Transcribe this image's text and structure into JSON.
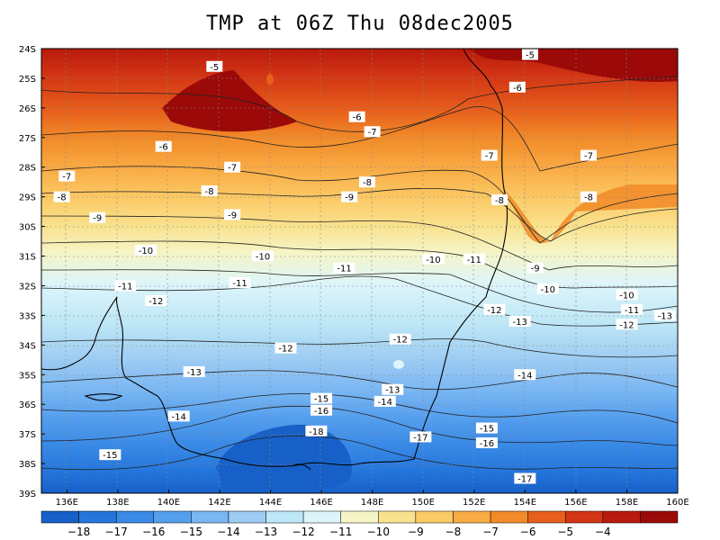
{
  "title": "TMP at 06Z Thu 08dec2005",
  "map": {
    "lat_range": [
      -39,
      -24
    ],
    "lon_range": [
      135,
      160
    ],
    "lat_ticks": [
      "24S",
      "25S",
      "26S",
      "27S",
      "28S",
      "29S",
      "30S",
      "31S",
      "32S",
      "33S",
      "34S",
      "35S",
      "36S",
      "37S",
      "38S",
      "39S"
    ],
    "lon_ticks": [
      "136E",
      "138E",
      "140E",
      "142E",
      "144E",
      "146E",
      "148E",
      "150E",
      "152E",
      "154E",
      "156E",
      "158E",
      "160E"
    ],
    "contour_labels": [
      {
        "v": "-5",
        "lon": 141.8,
        "lat": -24.6
      },
      {
        "v": "-5",
        "lon": 154.2,
        "lat": -24.2
      },
      {
        "v": "-6",
        "lon": 153.7,
        "lat": -25.3
      },
      {
        "v": "-6",
        "lon": 147.4,
        "lat": -26.3
      },
      {
        "v": "-6",
        "lon": 139.8,
        "lat": -27.3
      },
      {
        "v": "-7",
        "lon": 148.0,
        "lat": -26.8
      },
      {
        "v": "-7",
        "lon": 152.6,
        "lat": -27.6
      },
      {
        "v": "-7",
        "lon": 156.5,
        "lat": -27.6
      },
      {
        "v": "-7",
        "lon": 142.5,
        "lat": -28.0
      },
      {
        "v": "-7",
        "lon": 136.0,
        "lat": -28.3
      },
      {
        "v": "-8",
        "lon": 147.8,
        "lat": -28.5
      },
      {
        "v": "-8",
        "lon": 141.6,
        "lat": -28.8
      },
      {
        "v": "-8",
        "lon": 135.8,
        "lat": -29.0
      },
      {
        "v": "-8",
        "lon": 153.0,
        "lat": -29.1
      },
      {
        "v": "-8",
        "lon": 156.5,
        "lat": -29.0
      },
      {
        "v": "-9",
        "lon": 147.1,
        "lat": -29.0
      },
      {
        "v": "-9",
        "lon": 142.5,
        "lat": -29.6
      },
      {
        "v": "-9",
        "lon": 137.2,
        "lat": -29.7
      },
      {
        "v": "-9",
        "lon": 154.4,
        "lat": -31.4
      },
      {
        "v": "-10",
        "lon": 139.1,
        "lat": -30.8
      },
      {
        "v": "-10",
        "lon": 143.7,
        "lat": -31.0
      },
      {
        "v": "-10",
        "lon": 150.4,
        "lat": -31.1
      },
      {
        "v": "-10",
        "lon": 154.9,
        "lat": -32.1
      },
      {
        "v": "-10",
        "lon": 158.0,
        "lat": -32.3
      },
      {
        "v": "-11",
        "lon": 152.0,
        "lat": -31.1
      },
      {
        "v": "-11",
        "lon": 146.9,
        "lat": -31.4
      },
      {
        "v": "-11",
        "lon": 142.8,
        "lat": -31.9
      },
      {
        "v": "-11",
        "lon": 138.3,
        "lat": -32.0
      },
      {
        "v": "-11",
        "lon": 158.2,
        "lat": -32.8
      },
      {
        "v": "-12",
        "lon": 139.5,
        "lat": -32.5
      },
      {
        "v": "-12",
        "lon": 152.8,
        "lat": -32.8
      },
      {
        "v": "-12",
        "lon": 158.0,
        "lat": -33.3
      },
      {
        "v": "-12",
        "lon": 149.1,
        "lat": -33.8
      },
      {
        "v": "-12",
        "lon": 144.6,
        "lat": -34.1
      },
      {
        "v": "-13",
        "lon": 159.5,
        "lat": -33.0
      },
      {
        "v": "-13",
        "lon": 153.8,
        "lat": -33.2
      },
      {
        "v": "-13",
        "lon": 141.0,
        "lat": -34.9
      },
      {
        "v": "-13",
        "lon": 148.8,
        "lat": -35.5
      },
      {
        "v": "-14",
        "lon": 154.0,
        "lat": -35.0
      },
      {
        "v": "-14",
        "lon": 148.5,
        "lat": -35.9
      },
      {
        "v": "-14",
        "lon": 140.4,
        "lat": -36.4
      },
      {
        "v": "-15",
        "lon": 146.0,
        "lat": -35.8
      },
      {
        "v": "-15",
        "lon": 152.5,
        "lat": -36.8
      },
      {
        "v": "-15",
        "lon": 137.7,
        "lat": -37.7
      },
      {
        "v": "-16",
        "lon": 146.0,
        "lat": -36.2
      },
      {
        "v": "-16",
        "lon": 152.5,
        "lat": -37.3
      },
      {
        "v": "-17",
        "lon": 149.9,
        "lat": -37.1
      },
      {
        "v": "-17",
        "lon": 154.0,
        "lat": -38.5
      },
      {
        "v": "-18",
        "lon": 145.8,
        "lat": -36.9
      }
    ]
  },
  "colorbar": {
    "labels": [
      "−18",
      "−17",
      "−16",
      "−15",
      "−14",
      "−13",
      "−12",
      "−11",
      "−10",
      "−9",
      "−8",
      "−7",
      "−6",
      "−5",
      "−4"
    ],
    "colors": [
      "#1760c8",
      "#2576dc",
      "#3a8ae6",
      "#569fee",
      "#79b6f2",
      "#9dcbf2",
      "#bde6f6",
      "#ddf5fa",
      "#f5f5c8",
      "#f9e28e",
      "#fbcb68",
      "#f9ab44",
      "#f18a28",
      "#e75f1c",
      "#d23414",
      "#b81a0e",
      "#9b0a08"
    ]
  }
}
